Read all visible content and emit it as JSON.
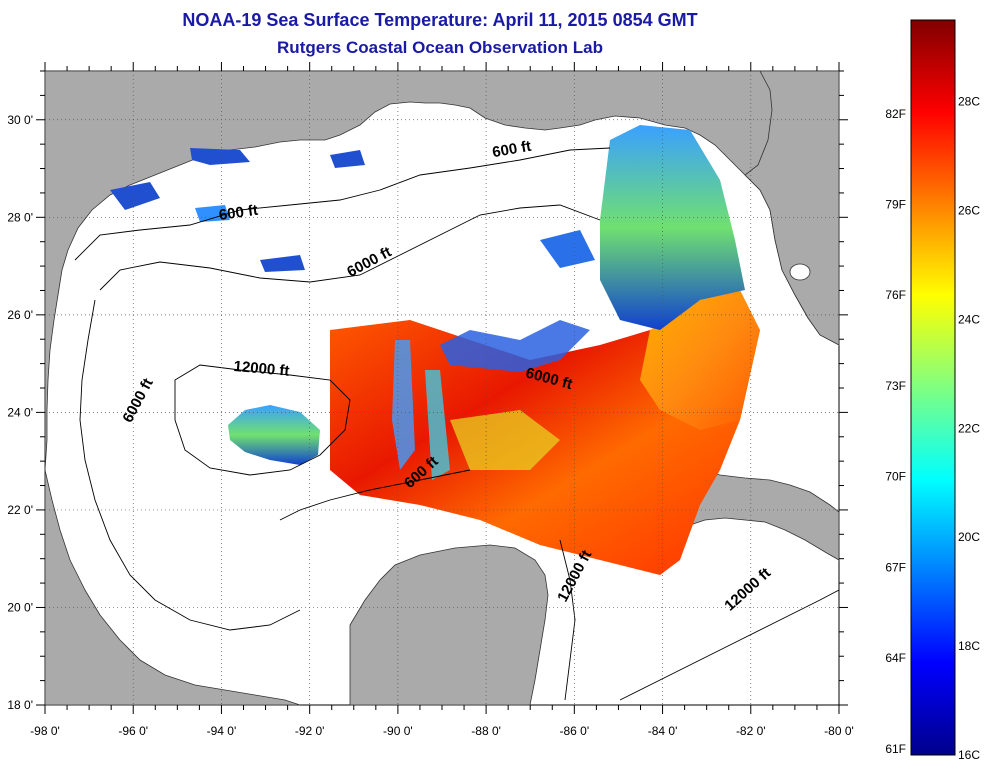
{
  "header": {
    "title": "NOAA-19 Sea Surface Temperature:  April 11, 2015 0854 GMT",
    "subtitle": "Rutgers Coastal Ocean Observation Lab"
  },
  "map": {
    "lon_range": [
      -98,
      -80
    ],
    "lat_range": [
      18,
      31
    ],
    "lon_ticks": [
      {
        "value": -98,
        "label": "-98 0'"
      },
      {
        "value": -96,
        "label": "-96 0'"
      },
      {
        "value": -94,
        "label": "-94 0'"
      },
      {
        "value": -92,
        "label": "-92 0'"
      },
      {
        "value": -90,
        "label": "-90 0'"
      },
      {
        "value": -88,
        "label": "-88 0'"
      },
      {
        "value": -86,
        "label": "-86 0'"
      },
      {
        "value": -84,
        "label": "-84 0'"
      },
      {
        "value": -82,
        "label": "-82 0'"
      },
      {
        "value": -80,
        "label": "-80 0'"
      }
    ],
    "lat_ticks": [
      {
        "value": 18,
        "label": "18 0'"
      },
      {
        "value": 20,
        "label": "20 0'"
      },
      {
        "value": 22,
        "label": "22 0'"
      },
      {
        "value": 24,
        "label": "24 0'"
      },
      {
        "value": 26,
        "label": "26 0'"
      },
      {
        "value": 28,
        "label": "28 0'"
      },
      {
        "value": 30,
        "label": "30 0'"
      }
    ],
    "contour_labels": [
      {
        "text": "600 ft",
        "lon": -93.6,
        "lat": 28.0,
        "angle": -8
      },
      {
        "text": "600 ft",
        "lon": -87.4,
        "lat": 29.3,
        "angle": -10
      },
      {
        "text": "6000 ft",
        "lon": -90.6,
        "lat": 27.0,
        "angle": -28
      },
      {
        "text": "6000 ft",
        "lon": -95.8,
        "lat": 24.2,
        "angle": -62
      },
      {
        "text": "12000 ft",
        "lon": -93.1,
        "lat": 24.8,
        "angle": 5
      },
      {
        "text": "6000 ft",
        "lon": -86.6,
        "lat": 24.6,
        "angle": 15
      },
      {
        "text": "600 ft",
        "lon": -89.4,
        "lat": 22.7,
        "angle": -42
      },
      {
        "text": "12000 ft",
        "lon": -85.9,
        "lat": 20.6,
        "angle": -62
      },
      {
        "text": "12000 ft",
        "lon": -82.0,
        "lat": 20.3,
        "angle": -42
      }
    ],
    "colors": {
      "land": "#aaaaaa",
      "ocean": "#ffffff",
      "grid": "#555555"
    }
  },
  "colorbar": {
    "celsius_labels": [
      {
        "value": 16,
        "label": "16C"
      },
      {
        "value": 18,
        "label": "18C"
      },
      {
        "value": 20,
        "label": "20C"
      },
      {
        "value": 22,
        "label": "22C"
      },
      {
        "value": 24,
        "label": "24C"
      },
      {
        "value": 26,
        "label": "26C"
      },
      {
        "value": 28,
        "label": "28C"
      }
    ],
    "fahrenheit_labels": [
      {
        "value": 61,
        "label": "61F"
      },
      {
        "value": 64,
        "label": "64F"
      },
      {
        "value": 67,
        "label": "67F"
      },
      {
        "value": 70,
        "label": "70F"
      },
      {
        "value": 73,
        "label": "73F"
      },
      {
        "value": 76,
        "label": "76F"
      },
      {
        "value": 79,
        "label": "79F"
      },
      {
        "value": 82,
        "label": "82F"
      }
    ],
    "range_c": [
      16,
      29.5
    ],
    "colors": [
      "#00008b",
      "#0000ff",
      "#0080ff",
      "#00ffff",
      "#80ff80",
      "#ffff00",
      "#ff8000",
      "#ff0000",
      "#800000"
    ]
  }
}
